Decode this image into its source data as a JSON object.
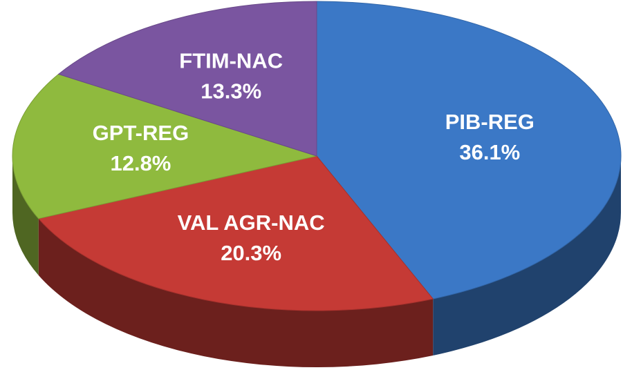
{
  "chart_data": {
    "type": "pie",
    "categories": [
      "PIB-REG",
      "VAL AGR-NAC",
      "GPT-REG",
      "FTIM-NAC"
    ],
    "values": [
      36.1,
      20.3,
      12.8,
      13.3
    ],
    "value_labels": [
      "36.1%",
      "20.3%",
      "12.8%",
      "13.3%"
    ],
    "colors": [
      "#3b78c6",
      "#c53a35",
      "#8fba3e",
      "#7a55a0"
    ]
  }
}
